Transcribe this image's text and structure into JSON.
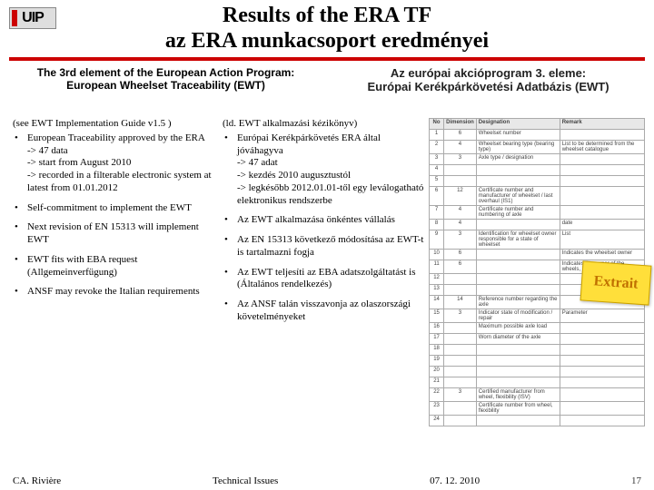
{
  "logo_text": "UIP",
  "title_line1": "Results of the ERA TF",
  "title_line2": "az ERA munkacsoport eredményei",
  "sub_left_line1": "The 3rd element of the European Action Program:",
  "sub_left_line2": "European Wheelset Traceability (EWT)",
  "sub_right_line1": "Az európai akcióprogram 3. eleme:",
  "sub_right_line2": "Európai Kerékpárkövetési Adatbázis (EWT)",
  "col_en": {
    "lead": "(see EWT Implementation Guide v1.5 )",
    "items": [
      {
        "text": "European Traceability approved by the ERA",
        "subs": [
          "-> 47 data",
          "-> start from August 2010",
          "-> recorded in a filterable electronic system at latest from 01.01.2012"
        ]
      },
      {
        "text": "Self-commitment to implement the EWT"
      },
      {
        "text": "Next revision of EN 15313 will implement EWT"
      },
      {
        "text": "EWT fits with EBA request (Allgemeinverfügung)"
      },
      {
        "text": "ANSF may revoke the Italian requirements"
      }
    ]
  },
  "col_hu": {
    "lead": "(ld. EWT alkalmazási kézikönyv)",
    "items": [
      {
        "text": "Európai Kerékpárkövetés ERA által jóváhagyva",
        "subs": [
          "-> 47 adat",
          "-> kezdés 2010 augusztustól",
          "-> legkésőbb 2012.01.01-től egy leválogatható elektronikus rendszerbe"
        ]
      },
      {
        "text": "Az EWT alkalmazása önkéntes vállalás"
      },
      {
        "text": "Az EN 15313 következő módosítása az EWT-t is tartalmazni fogja"
      },
      {
        "text": "Az EWT teljesíti az EBA adatszolgáltatást is (Általános rendelkezés)"
      },
      {
        "text": "Az ANSF talán visszavonja az olaszországi követelményeket"
      }
    ]
  },
  "table": {
    "headers": [
      "No",
      "Dimension",
      "Designation",
      "Remark"
    ],
    "rows": [
      [
        "1",
        "6",
        "Wheelset number",
        ""
      ],
      [
        "2",
        "4",
        "Wheelset bearing type (bearing type)",
        "List to be determined from the wheelset catalogue"
      ],
      [
        "3",
        "3",
        "Axle type / designation",
        ""
      ],
      [
        "4",
        "",
        "",
        ""
      ],
      [
        "5",
        "",
        "",
        ""
      ],
      [
        "6",
        "12",
        "Certificate number and manufacturer of wheelset / last overhaul (IS1)",
        ""
      ],
      [
        "7",
        "4",
        "Certificate number and numbering of axle",
        ""
      ],
      [
        "8",
        "4",
        "",
        "date"
      ],
      [
        "9",
        "3",
        "Identification for wheelset owner responsible for a state of wheelset",
        "List"
      ],
      [
        "10",
        "6",
        "",
        "Indicates the wheelset owner"
      ],
      [
        "11",
        "6",
        "",
        "Indicates the owner of the wheels, in conformity of TSI"
      ],
      [
        "12",
        "",
        "",
        ""
      ],
      [
        "13",
        "",
        "",
        ""
      ],
      [
        "14",
        "14",
        "Reference number regarding the axle",
        ""
      ],
      [
        "15",
        "3",
        "Indicator state of modification / repair",
        "Parameter"
      ],
      [
        "16",
        "",
        "Maximum possible axle load",
        ""
      ],
      [
        "17",
        "",
        "Worn diameter of the axle",
        ""
      ],
      [
        "18",
        "",
        "",
        ""
      ],
      [
        "19",
        "",
        "",
        ""
      ],
      [
        "20",
        "",
        "",
        ""
      ],
      [
        "21",
        "",
        "",
        ""
      ],
      [
        "22",
        "3",
        "Certified manufacturer from wheel, flexibility (ISV)",
        ""
      ],
      [
        "23",
        "",
        "Certificate number from wheel, flexibility",
        ""
      ],
      [
        "24",
        "",
        "",
        ""
      ]
    ]
  },
  "sticker_text": "Extrait",
  "footer": {
    "left": "CA. Rivière",
    "center": "Technical Issues",
    "right": "07. 12. 2010",
    "page": "17"
  }
}
